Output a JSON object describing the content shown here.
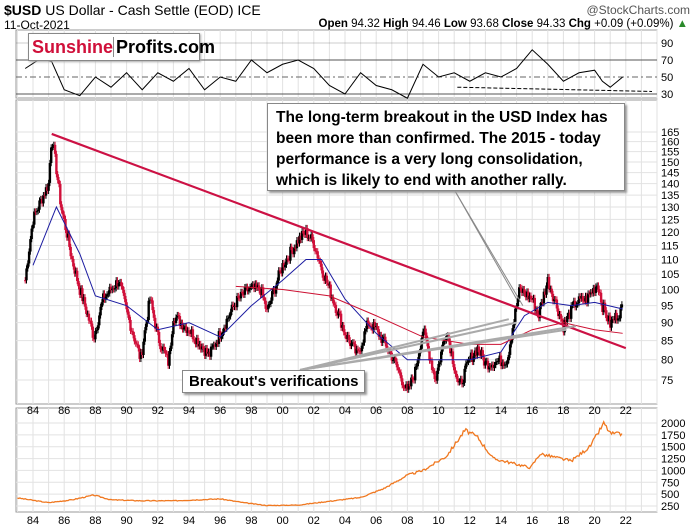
{
  "header": {
    "symbol": "$USD",
    "name": "US Dollar - Cash Settle (EOD)",
    "exchange": "ICE",
    "date": "11-Oct-2021",
    "copyright": "@StockCharts.com",
    "open_label": "Open",
    "open": "94.32",
    "high_label": "High",
    "high": "94.46",
    "low_label": "Low",
    "low": "93.68",
    "close_label": "Close",
    "close": "94.33",
    "chg_label": "Chg",
    "chg": "+0.09 (+0.09%)"
  },
  "logo": {
    "part1": "Sunshine",
    "part2": "Profits.com",
    "part1_color": "#d0103a"
  },
  "annotations": {
    "main": "The long-term breakout in the USD Index has been more than confirmed. The 2015 - today performance is a very long consolidation, which is likely to end with another rally.",
    "verifications": "Breakout's verifications"
  },
  "chart_data": [
    {
      "type": "line",
      "panel": "RSI",
      "ylim": [
        20,
        100
      ],
      "yticks": [
        30,
        50,
        70,
        90
      ],
      "grid": true,
      "x": [
        1983.5,
        1984.5,
        1985.2,
        1986,
        1987,
        1988,
        1989,
        1990,
        1991,
        1992,
        1993,
        1994,
        1995,
        1996,
        1997,
        1998,
        1999,
        2000,
        2001,
        2002,
        2003,
        2004,
        2005,
        2006,
        2007,
        2008,
        2009,
        2010,
        2011,
        2012,
        2013,
        2014,
        2015,
        2016,
        2017,
        2018,
        2019,
        2020,
        2020.5,
        2021,
        2021.8
      ],
      "values": [
        60,
        72,
        68,
        35,
        28,
        50,
        38,
        55,
        35,
        55,
        45,
        60,
        35,
        50,
        45,
        70,
        55,
        65,
        70,
        60,
        40,
        30,
        55,
        40,
        35,
        25,
        65,
        50,
        55,
        45,
        55,
        50,
        60,
        82,
        65,
        45,
        55,
        58,
        45,
        38,
        50
      ],
      "series_color": "#000000"
    },
    {
      "type": "candlestick",
      "panel": "price",
      "scale": "log",
      "ylim": [
        68,
        185
      ],
      "yticks": [
        75,
        80,
        85,
        90,
        95,
        100,
        105,
        110,
        115,
        120,
        125,
        130,
        135,
        140,
        145,
        150,
        155,
        160,
        165
      ],
      "xticks": [
        "84",
        "86",
        "88",
        "90",
        "92",
        "94",
        "96",
        "98",
        "00",
        "02",
        "04",
        "06",
        "08",
        "10",
        "12",
        "14",
        "16",
        "18",
        "20",
        "22"
      ],
      "xlim": [
        1982.9,
        2024.2
      ],
      "grid": true,
      "x": [
        1983.5,
        1984,
        1985,
        1985.2,
        1985.8,
        1986.5,
        1987,
        1987.9,
        1988.5,
        1989.5,
        1990,
        1990.9,
        1991.5,
        1992,
        1992.7,
        1993,
        1994,
        1995.3,
        1996,
        1997,
        1997.8,
        1998.6,
        1999,
        2000,
        2001,
        2001.5,
        2002,
        2002.5,
        2003,
        2004,
        2004.8,
        2005.5,
        2006,
        2007,
        2008,
        2008.5,
        2009,
        2009.8,
        2010.5,
        2011.3,
        2012,
        2012.5,
        2013,
        2014.4,
        2015,
        2015.2,
        2016,
        2016.4,
        2017,
        2018,
        2018.8,
        2019.5,
        2020.2,
        2020.5,
        2021,
        2021.4,
        2021.8
      ],
      "values": [
        103,
        125,
        140,
        163,
        130,
        110,
        100,
        86,
        97,
        103,
        93,
        80,
        97,
        86,
        79,
        92,
        88,
        81,
        87,
        96,
        100,
        100,
        93,
        108,
        117,
        120,
        116,
        107,
        100,
        87,
        81,
        90,
        88,
        81,
        72,
        77,
        88,
        75,
        88,
        73,
        80,
        83,
        79,
        80,
        95,
        100,
        97,
        92,
        103,
        89,
        96,
        97,
        102,
        95,
        89.5,
        92,
        94.3
      ],
      "moving_average_short": {
        "color": "#1a1aa0",
        "x": [
          1984,
          1985.5,
          1987,
          1988,
          1990,
          1992,
          1994,
          1996,
          1998,
          2000,
          2001.5,
          2002.5,
          2004,
          2006,
          2008,
          2010,
          2012,
          2014,
          2015.5,
          2017,
          2018.5,
          2020,
          2021.8
        ],
        "values": [
          108,
          130,
          112,
          98,
          95,
          88,
          90,
          86,
          95,
          103,
          110,
          110,
          97,
          87,
          80,
          80,
          80,
          82,
          92,
          96,
          95,
          96,
          94
        ]
      },
      "moving_average_long": {
        "color": "#cc1133",
        "x": [
          1997,
          2000,
          2003,
          2006,
          2009,
          2012,
          2014,
          2016,
          2018,
          2020,
          2021.8
        ],
        "values": [
          101,
          100,
          98,
          92,
          86,
          84,
          84,
          88,
          90,
          88,
          87
        ]
      },
      "trendline": {
        "color": "#cc1144",
        "from": [
          1985.2,
          164
        ],
        "to": [
          2022,
          83
        ]
      }
    },
    {
      "type": "line",
      "panel": "gold",
      "ylim": [
        150,
        2150
      ],
      "yticks": [
        250,
        500,
        750,
        1000,
        1250,
        1500,
        1750,
        2000
      ],
      "grid": true,
      "series_color": "#f07820",
      "x": [
        1983,
        1985,
        1986.5,
        1987.9,
        1989,
        1991,
        1993,
        1996,
        1997.5,
        1999,
        2001,
        2003,
        2005,
        2006.5,
        2008,
        2009,
        2010.5,
        2011.7,
        2012.5,
        2013.5,
        2015.9,
        2016.5,
        2018.5,
        2019.7,
        2020.6,
        2021,
        2021.8
      ],
      "values": [
        420,
        320,
        380,
        480,
        380,
        360,
        360,
        400,
        320,
        260,
        270,
        350,
        430,
        620,
        900,
        1000,
        1300,
        1850,
        1700,
        1250,
        1060,
        1350,
        1200,
        1500,
        2000,
        1780,
        1760
      ]
    }
  ]
}
